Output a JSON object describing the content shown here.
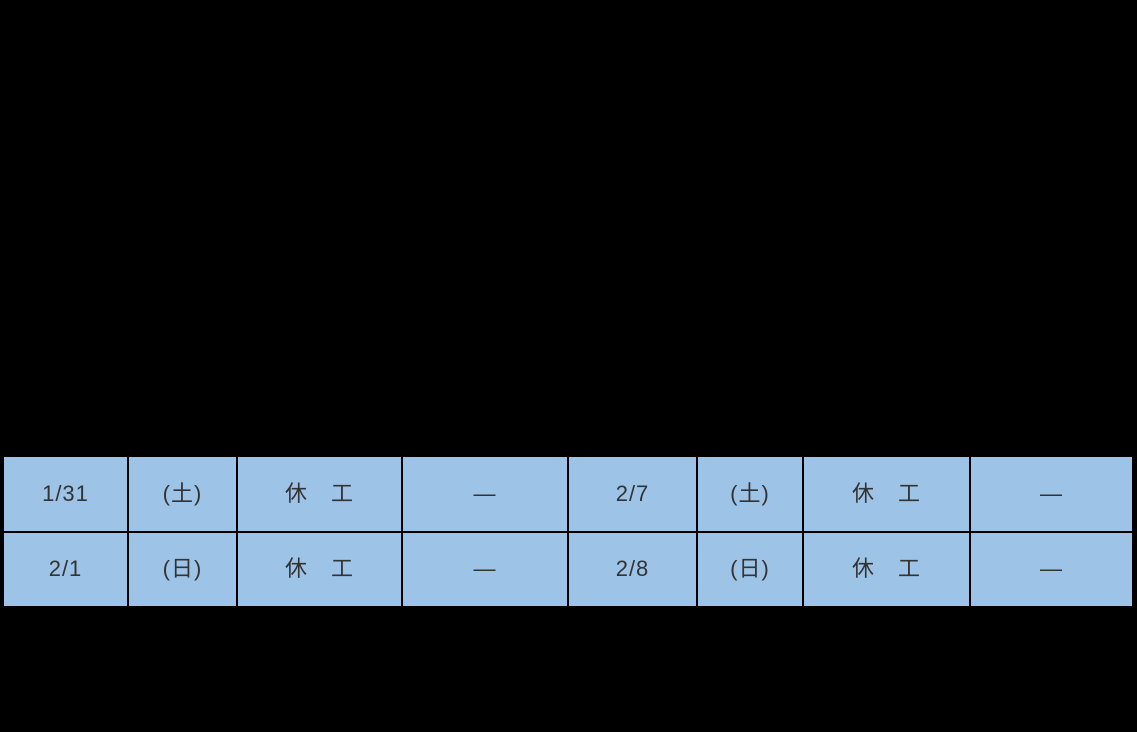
{
  "colors": {
    "background": "#000000",
    "cell_fill": "#9DC3E6",
    "cell_border": "#000000",
    "cell_text": "#333333"
  },
  "schedule_table": {
    "rows": [
      [
        "1/31",
        "(土)",
        "休　工",
        "—",
        "2/7",
        "(土)",
        "休　工",
        "—"
      ],
      [
        "2/1",
        "(日)",
        "休　工",
        "—",
        "2/8",
        "(日)",
        "休　工",
        "—"
      ]
    ]
  }
}
